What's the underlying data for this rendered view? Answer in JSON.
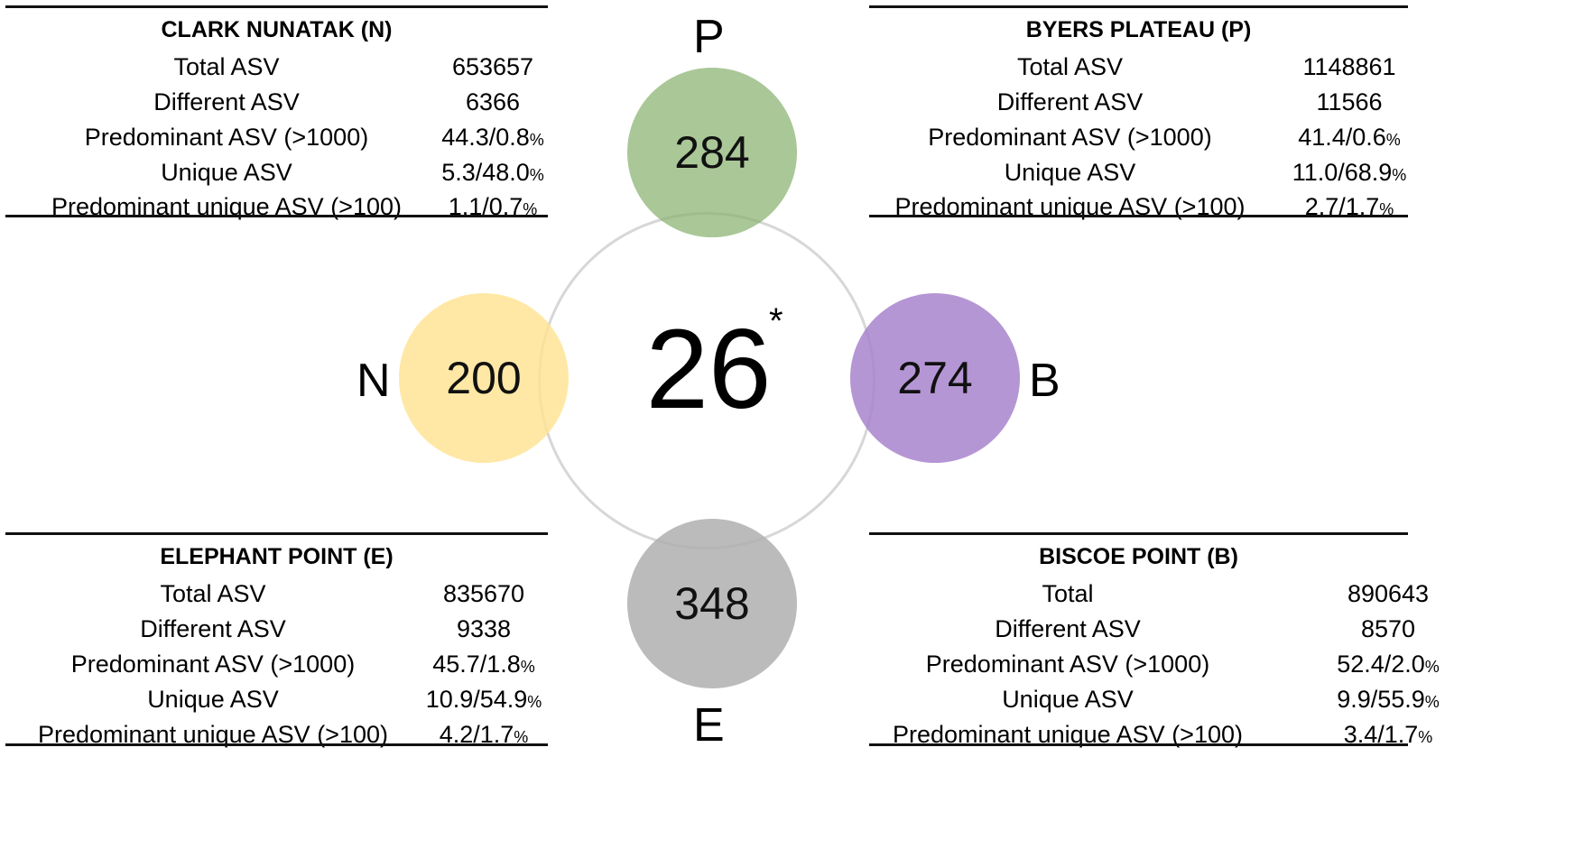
{
  "center": {
    "shared_count": "26",
    "marker": "*"
  },
  "sites": {
    "P": {
      "letter": "P",
      "unique_count": "284",
      "color": "#89b270"
    },
    "N": {
      "letter": "N",
      "unique_count": "200",
      "color": "#ffe392"
    },
    "B": {
      "letter": "B",
      "unique_count": "274",
      "color": "#a884cc"
    },
    "E": {
      "letter": "E",
      "unique_count": "348",
      "color": "#afafaf"
    }
  },
  "tables": {
    "N": {
      "title": "CLARK NUNATAK (N)",
      "rows": [
        {
          "label": "Total ASV",
          "value": "653657",
          "pct": ""
        },
        {
          "label": "Different ASV",
          "value": "6366",
          "pct": ""
        },
        {
          "label": "Predominant ASV (>1000)",
          "value": "44.3/0.8",
          "pct": "%"
        },
        {
          "label": "Unique ASV",
          "value": "5.3/48.0",
          "pct": "%"
        },
        {
          "label": "Predominant unique ASV (>100)",
          "value": "1.1/0.7",
          "pct": "%"
        }
      ]
    },
    "P": {
      "title": "BYERS PLATEAU (P)",
      "rows": [
        {
          "label": "Total ASV",
          "value": "1148861",
          "pct": ""
        },
        {
          "label": "Different ASV",
          "value": "11566",
          "pct": ""
        },
        {
          "label": "Predominant ASV (>1000)",
          "value": "41.4/0.6",
          "pct": "%"
        },
        {
          "label": "Unique ASV",
          "value": "11.0/68.9",
          "pct": "%"
        },
        {
          "label": "Predominant unique ASV (>100)",
          "value": "2.7/1.7",
          "pct": "%"
        }
      ]
    },
    "E": {
      "title": "ELEPHANT POINT (E)",
      "rows": [
        {
          "label": "Total ASV",
          "value": "835670",
          "pct": ""
        },
        {
          "label": "Different ASV",
          "value": "9338",
          "pct": ""
        },
        {
          "label": "Predominant ASV (>1000)",
          "value": "45.7/1.8",
          "pct": "%"
        },
        {
          "label": "Unique ASV",
          "value": "10.9/54.9",
          "pct": "%"
        },
        {
          "label": "Predominant unique ASV (>100)",
          "value": "4.2/1.7",
          "pct": "%"
        }
      ]
    },
    "B": {
      "title": "BISCOE POINT (B)",
      "rows": [
        {
          "label": "Total",
          "value": "890643",
          "pct": ""
        },
        {
          "label": "Different ASV",
          "value": "8570",
          "pct": ""
        },
        {
          "label": "Predominant ASV (>1000)",
          "value": "52.4/2.0",
          "pct": "%"
        },
        {
          "label": "Unique ASV",
          "value": "9.9/55.9",
          "pct": "%"
        },
        {
          "label": "Predominant unique ASV (>100)",
          "value": "3.4/1.7",
          "pct": "%"
        }
      ]
    }
  }
}
